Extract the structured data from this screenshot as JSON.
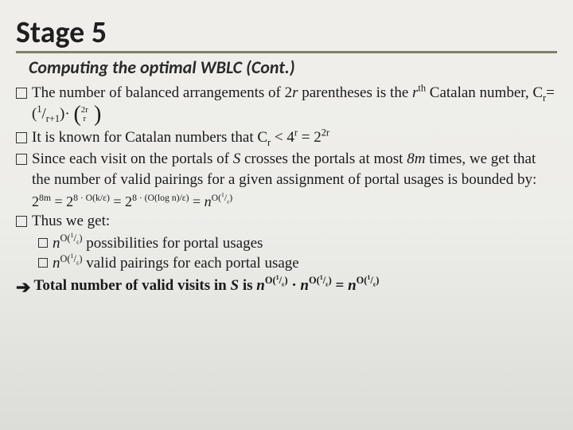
{
  "slide": {
    "title": "Stage 5",
    "subtitle": "Computing the optimal WBLC (Cont.)",
    "title_color": "#1f1f1f",
    "underline_color": "#808066",
    "background_gradient": [
      "#f0eeea",
      "#dcdcd8"
    ],
    "font_body": "Georgia",
    "font_title": "Calibri",
    "title_fontsize": 38,
    "subtitle_fontsize": 22,
    "body_fontsize": 19
  },
  "bullets": [
    {
      "type": "main",
      "text_html": "The number of balanced arrangements of 2<span class='ital'>r</span> parentheses is the <span class='ital'>r</span><sup>th</sup> Catalan number, C<sub>r</sub>=(<sup>1</sup>/<sub>r+1</sub>)· <span class='binom'><span class='paren'>(</span><span class='binom-stack'><span>2r</span><span>r</span></span><span class='paren'>&nbsp;)</span></span>"
    },
    {
      "type": "main",
      "text_html": "It is known for Catalan numbers that C<sub>r</sub> &lt; 4<sup>r</sup> = 2<sup>2r</sup>"
    },
    {
      "type": "main",
      "text_html": "Since each visit on the portals of <span class='ital'>S</span> crosses the portals at most <span class='ital'>8m</span> times, we get that the number of valid pairings for a given assignment of portal usages is bounded by:"
    },
    {
      "type": "equation",
      "text_html": "2<sup>8m</sup> = 2<sup>8 · O(k/ε)</sup> = 2<sup>8 · (O(log n)/ε)</sup> = <span class='ital'>n</span><sup>O(<sup>1</sup>/<sub>ε</sub>)</sup>"
    },
    {
      "type": "main",
      "text_html": "Thus we get:"
    },
    {
      "type": "sub",
      "text_html": "<span class='ital'>n</span><sup>O(<sup>1</sup>/<sub>ε</sub>)</sup> possibilities for portal usages"
    },
    {
      "type": "sub",
      "text_html": "<span class='ital'>n</span><sup>O(<sup>1</sup>/<sub>ε</sub>)</sup> valid pairings for each portal usage"
    },
    {
      "type": "final",
      "text_html": "Total number of valid visits in <span class='ital'>S</span> is <span class='ital'>n</span><sup>O(<sup>1</sup>/<sub>ε</sub>)</sup> · <span class='ital'>n</span><sup>O(<sup>1</sup>/<sub>ε</sub>)</sup> = <span class='ital'>n</span><sup>O(<sup>1</sup>/<sub>ε</sub>)</sup>"
    }
  ]
}
